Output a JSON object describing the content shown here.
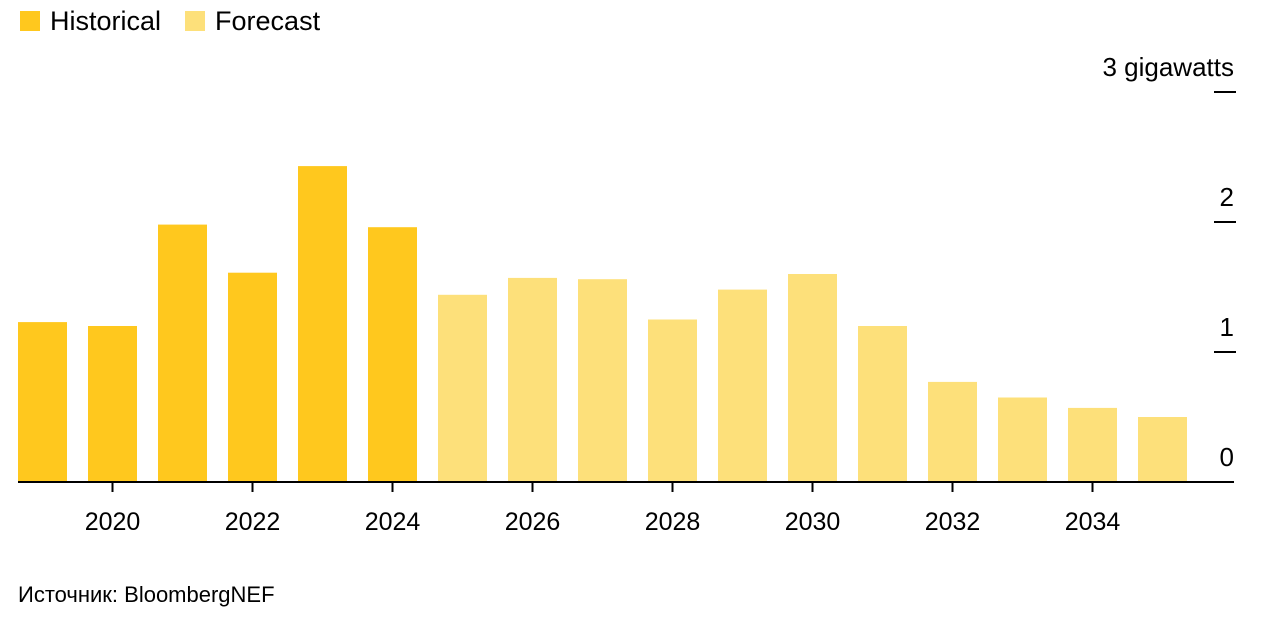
{
  "chart_data": {
    "type": "bar",
    "title": "",
    "xlabel": "",
    "ylabel": "",
    "unit_label": "3 gigawatts",
    "categories": [
      "2019",
      "2020",
      "2021",
      "2022",
      "2023",
      "2024",
      "2025",
      "2026",
      "2027",
      "2028",
      "2029",
      "2030",
      "2031",
      "2032",
      "2033",
      "2034",
      "2035"
    ],
    "series": [
      {
        "name": "Historical",
        "color": "#FFC81E",
        "values": [
          1.23,
          1.2,
          1.98,
          1.61,
          2.43,
          1.96,
          null,
          null,
          null,
          null,
          null,
          null,
          null,
          null,
          null,
          null,
          null
        ]
      },
      {
        "name": "Forecast",
        "color": "#FDE07A",
        "values": [
          null,
          null,
          null,
          null,
          null,
          null,
          1.44,
          1.57,
          1.56,
          1.25,
          1.48,
          1.6,
          1.2,
          0.77,
          0.65,
          0.57,
          0.5
        ]
      }
    ],
    "ylim": [
      0,
      3
    ],
    "yticks": [
      {
        "value": 0,
        "label": "0"
      },
      {
        "value": 1,
        "label": "1"
      },
      {
        "value": 2,
        "label": "2"
      },
      {
        "value": 3,
        "label": "3 gigawatts"
      }
    ],
    "xticks": [
      "2020",
      "2022",
      "2024",
      "2026",
      "2028",
      "2030",
      "2032",
      "2034"
    ],
    "legend_position": "top-left",
    "source": "Источник: BloombergNEF"
  }
}
